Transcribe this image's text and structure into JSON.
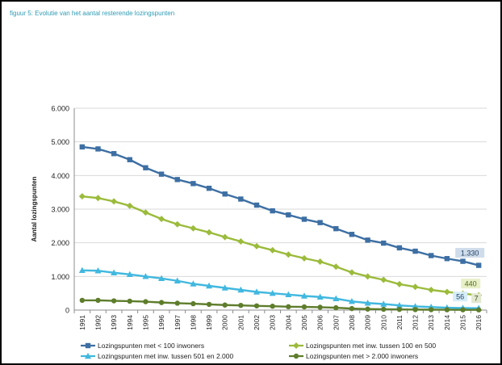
{
  "caption": "figuur 5: Evolutie van het aantal resterende lozingspunten",
  "chart_data": {
    "type": "line",
    "ylabel": "Aantal lozingspunten",
    "xlabel": "",
    "ylim": [
      0,
      6000
    ],
    "y_ticks": [
      "0",
      "1.000",
      "2.000",
      "3.000",
      "4.000",
      "5.000",
      "6.000"
    ],
    "categories": [
      "1991",
      "1992",
      "1993",
      "1994",
      "1995",
      "1996",
      "1997",
      "1998",
      "1999",
      "2000",
      "2001",
      "2002",
      "2003",
      "2004",
      "2005",
      "2006",
      "2007",
      "2008",
      "2009",
      "2010",
      "2011",
      "2012",
      "2013",
      "2014",
      "2015",
      "2016"
    ],
    "grid": true,
    "legend_position": "bottom",
    "series": [
      {
        "name": "Lozingspunten met < 100 inwoners",
        "color": "#3d6fa3",
        "marker": "square",
        "values": [
          4850,
          4790,
          4650,
          4470,
          4230,
          4040,
          3880,
          3760,
          3620,
          3450,
          3300,
          3120,
          2950,
          2830,
          2700,
          2600,
          2420,
          2250,
          2080,
          1990,
          1850,
          1750,
          1620,
          1530,
          1450,
          1330
        ]
      },
      {
        "name": "Lozingspunten met inw. tussen 100 en 500",
        "color": "#9bbb3b",
        "marker": "diamond",
        "values": [
          3380,
          3330,
          3230,
          3100,
          2900,
          2710,
          2550,
          2430,
          2310,
          2170,
          2040,
          1900,
          1780,
          1650,
          1540,
          1440,
          1290,
          1120,
          1000,
          900,
          770,
          690,
          600,
          540,
          490,
          440
        ]
      },
      {
        "name": "Lozingspunten met inw. tussen 501 en 2.000",
        "color": "#41b8df",
        "marker": "triangle",
        "values": [
          1180,
          1170,
          1110,
          1060,
          1000,
          940,
          870,
          780,
          720,
          660,
          600,
          540,
          500,
          460,
          420,
          390,
          340,
          260,
          210,
          180,
          140,
          110,
          90,
          70,
          60,
          56
        ]
      },
      {
        "name": "Lozingspunten met > 2.000 inwoners",
        "color": "#5e7d2c",
        "marker": "circle",
        "values": [
          290,
          290,
          275,
          265,
          250,
          225,
          205,
          190,
          170,
          150,
          140,
          125,
          115,
          100,
          95,
          85,
          70,
          45,
          30,
          25,
          20,
          15,
          12,
          10,
          8,
          7
        ]
      }
    ],
    "annotations": [
      {
        "text": "1.330",
        "series": 0,
        "x": "2016",
        "bg": "#cfdcea",
        "fg": "#1f3f66"
      },
      {
        "text": "440",
        "series": 1,
        "x": "2016",
        "bg": "#e8f0c8",
        "fg": "#4f6a1a"
      },
      {
        "text": "56",
        "series": 2,
        "x": "2016",
        "bg": "#d6eef8",
        "fg": "#1f3f66"
      },
      {
        "text": "7",
        "series": 3,
        "x": "2016",
        "bg": "#e1e8cf",
        "fg": "#3d4f1a"
      }
    ]
  }
}
